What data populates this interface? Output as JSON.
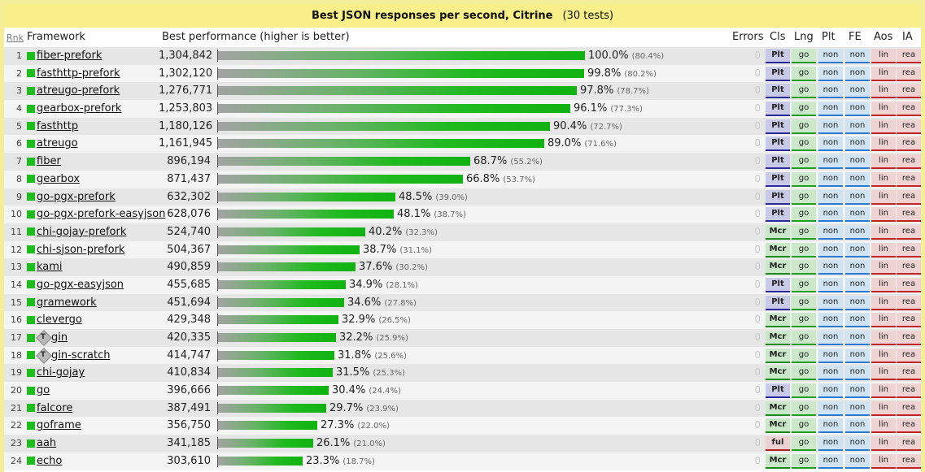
{
  "title": {
    "main": "Best JSON responses per second, Citrine",
    "sub": "(30 tests)"
  },
  "header": {
    "rank": "Rnk",
    "framework": "Framework",
    "perf": "Best performance (higher is better)",
    "errors": "Errors",
    "cls": "Cls",
    "lng": "Lng",
    "plt": "Plt",
    "fe": "FE",
    "aos": "Aos",
    "ia": "IA"
  },
  "colors": {
    "bar_green": "#1fba1f",
    "header_bg": "#f8ef8b",
    "page_bg": "#f4ee9a"
  },
  "rows": [
    {
      "rank": "1",
      "name": "fiber-prefork",
      "value": "1,304,842",
      "pct": "100.0%",
      "paren": "(80.4%)",
      "fill": 1.0,
      "errors": "0",
      "cls": "Plt",
      "lng": "go",
      "plt": "non",
      "fe": "non",
      "aos": "lin",
      "ia": "rea",
      "icon": ""
    },
    {
      "rank": "2",
      "name": "fasthttp-prefork",
      "value": "1,302,120",
      "pct": "99.8%",
      "paren": "(80.2%)",
      "fill": 0.998,
      "errors": "0",
      "cls": "Plt",
      "lng": "go",
      "plt": "non",
      "fe": "non",
      "aos": "lin",
      "ia": "rea",
      "icon": ""
    },
    {
      "rank": "3",
      "name": "atreugo-prefork",
      "value": "1,276,771",
      "pct": "97.8%",
      "paren": "(78.7%)",
      "fill": 0.978,
      "errors": "0",
      "cls": "Plt",
      "lng": "go",
      "plt": "non",
      "fe": "non",
      "aos": "lin",
      "ia": "rea",
      "icon": ""
    },
    {
      "rank": "4",
      "name": "gearbox-prefork",
      "value": "1,253,803",
      "pct": "96.1%",
      "paren": "(77.3%)",
      "fill": 0.961,
      "errors": "0",
      "cls": "Plt",
      "lng": "go",
      "plt": "non",
      "fe": "non",
      "aos": "lin",
      "ia": "rea",
      "icon": ""
    },
    {
      "rank": "5",
      "name": "fasthttp",
      "value": "1,180,126",
      "pct": "90.4%",
      "paren": "(72.7%)",
      "fill": 0.904,
      "errors": "0",
      "cls": "Plt",
      "lng": "go",
      "plt": "non",
      "fe": "non",
      "aos": "lin",
      "ia": "rea",
      "icon": ""
    },
    {
      "rank": "6",
      "name": "atreugo",
      "value": "1,161,945",
      "pct": "89.0%",
      "paren": "(71.6%)",
      "fill": 0.89,
      "errors": "0",
      "cls": "Plt",
      "lng": "go",
      "plt": "non",
      "fe": "non",
      "aos": "lin",
      "ia": "rea",
      "icon": ""
    },
    {
      "rank": "7",
      "name": "fiber",
      "value": "896,194",
      "pct": "68.7%",
      "paren": "(55.2%)",
      "fill": 0.687,
      "errors": "0",
      "cls": "Plt",
      "lng": "go",
      "plt": "non",
      "fe": "non",
      "aos": "lin",
      "ia": "rea",
      "icon": ""
    },
    {
      "rank": "8",
      "name": "gearbox",
      "value": "871,437",
      "pct": "66.8%",
      "paren": "(53.7%)",
      "fill": 0.668,
      "errors": "0",
      "cls": "Plt",
      "lng": "go",
      "plt": "non",
      "fe": "non",
      "aos": "lin",
      "ia": "rea",
      "icon": ""
    },
    {
      "rank": "9",
      "name": "go-pgx-prefork",
      "value": "632,302",
      "pct": "48.5%",
      "paren": "(39.0%)",
      "fill": 0.485,
      "errors": "0",
      "cls": "Plt",
      "lng": "go",
      "plt": "non",
      "fe": "non",
      "aos": "lin",
      "ia": "rea",
      "icon": ""
    },
    {
      "rank": "10",
      "name": "go-pgx-prefork-easyjson",
      "value": "628,076",
      "pct": "48.1%",
      "paren": "(38.7%)",
      "fill": 0.481,
      "errors": "0",
      "cls": "Plt",
      "lng": "go",
      "plt": "non",
      "fe": "non",
      "aos": "lin",
      "ia": "rea",
      "icon": ""
    },
    {
      "rank": "11",
      "name": "chi-gojay-prefork",
      "value": "524,740",
      "pct": "40.2%",
      "paren": "(32.3%)",
      "fill": 0.402,
      "errors": "0",
      "cls": "Mcr",
      "lng": "go",
      "plt": "non",
      "fe": "non",
      "aos": "lin",
      "ia": "rea",
      "icon": ""
    },
    {
      "rank": "12",
      "name": "chi-sjson-prefork",
      "value": "504,367",
      "pct": "38.7%",
      "paren": "(31.1%)",
      "fill": 0.387,
      "errors": "0",
      "cls": "Mcr",
      "lng": "go",
      "plt": "non",
      "fe": "non",
      "aos": "lin",
      "ia": "rea",
      "icon": ""
    },
    {
      "rank": "13",
      "name": "kami",
      "value": "490,859",
      "pct": "37.6%",
      "paren": "(30.2%)",
      "fill": 0.376,
      "errors": "0",
      "cls": "Mcr",
      "lng": "go",
      "plt": "non",
      "fe": "non",
      "aos": "lin",
      "ia": "rea",
      "icon": ""
    },
    {
      "rank": "14",
      "name": "go-pgx-easyjson",
      "value": "455,685",
      "pct": "34.9%",
      "paren": "(28.1%)",
      "fill": 0.349,
      "errors": "0",
      "cls": "Plt",
      "lng": "go",
      "plt": "non",
      "fe": "non",
      "aos": "lin",
      "ia": "rea",
      "icon": ""
    },
    {
      "rank": "15",
      "name": "gramework",
      "value": "451,694",
      "pct": "34.6%",
      "paren": "(27.8%)",
      "fill": 0.346,
      "errors": "0",
      "cls": "Plt",
      "lng": "go",
      "plt": "non",
      "fe": "non",
      "aos": "lin",
      "ia": "rea",
      "icon": ""
    },
    {
      "rank": "16",
      "name": "clevergo",
      "value": "429,348",
      "pct": "32.9%",
      "paren": "(26.5%)",
      "fill": 0.329,
      "errors": "0",
      "cls": "Mcr",
      "lng": "go",
      "plt": "non",
      "fe": "non",
      "aos": "lin",
      "ia": "rea",
      "icon": ""
    },
    {
      "rank": "17",
      "name": "gin",
      "value": "420,335",
      "pct": "32.2%",
      "paren": "(25.9%)",
      "fill": 0.322,
      "errors": "0",
      "cls": "Mcr",
      "lng": "go",
      "plt": "non",
      "fe": "non",
      "aos": "lin",
      "ia": "rea",
      "icon": "T"
    },
    {
      "rank": "18",
      "name": "gin-scratch",
      "value": "414,747",
      "pct": "31.8%",
      "paren": "(25.6%)",
      "fill": 0.318,
      "errors": "0",
      "cls": "Mcr",
      "lng": "go",
      "plt": "non",
      "fe": "non",
      "aos": "lin",
      "ia": "rea",
      "icon": "T"
    },
    {
      "rank": "19",
      "name": "chi-gojay",
      "value": "410,834",
      "pct": "31.5%",
      "paren": "(25.3%)",
      "fill": 0.315,
      "errors": "0",
      "cls": "Mcr",
      "lng": "go",
      "plt": "non",
      "fe": "non",
      "aos": "lin",
      "ia": "rea",
      "icon": ""
    },
    {
      "rank": "20",
      "name": "go",
      "value": "396,666",
      "pct": "30.4%",
      "paren": "(24.4%)",
      "fill": 0.304,
      "errors": "0",
      "cls": "Plt",
      "lng": "go",
      "plt": "non",
      "fe": "non",
      "aos": "lin",
      "ia": "rea",
      "icon": ""
    },
    {
      "rank": "21",
      "name": "falcore",
      "value": "387,491",
      "pct": "29.7%",
      "paren": "(23.9%)",
      "fill": 0.297,
      "errors": "0",
      "cls": "Mcr",
      "lng": "go",
      "plt": "non",
      "fe": "non",
      "aos": "lin",
      "ia": "rea",
      "icon": ""
    },
    {
      "rank": "22",
      "name": "goframe",
      "value": "356,750",
      "pct": "27.3%",
      "paren": "(22.0%)",
      "fill": 0.273,
      "errors": "0",
      "cls": "Mcr",
      "lng": "go",
      "plt": "non",
      "fe": "non",
      "aos": "lin",
      "ia": "rea",
      "icon": ""
    },
    {
      "rank": "23",
      "name": "aah",
      "value": "341,185",
      "pct": "26.1%",
      "paren": "(21.0%)",
      "fill": 0.261,
      "errors": "0",
      "cls": "ful",
      "lng": "go",
      "plt": "non",
      "fe": "non",
      "aos": "lin",
      "ia": "rea",
      "icon": ""
    },
    {
      "rank": "24",
      "name": "echo",
      "value": "303,610",
      "pct": "23.3%",
      "paren": "(18.7%)",
      "fill": 0.233,
      "errors": "0",
      "cls": "Mcr",
      "lng": "go",
      "plt": "non",
      "fe": "non",
      "aos": "lin",
      "ia": "rea",
      "icon": ""
    }
  ]
}
